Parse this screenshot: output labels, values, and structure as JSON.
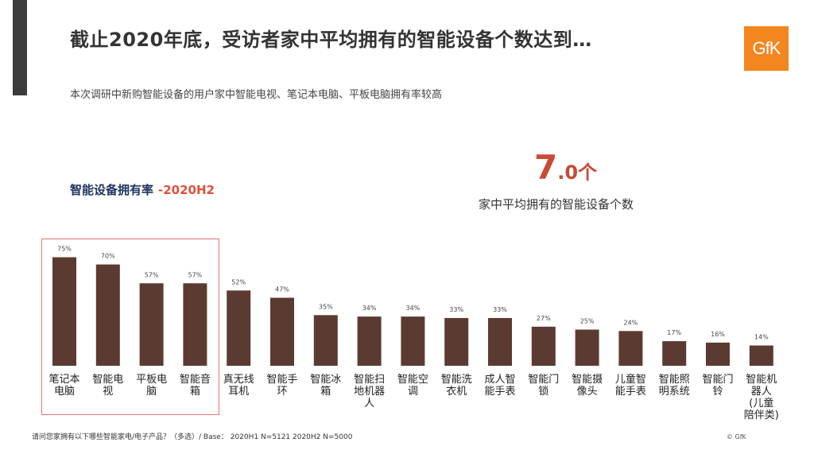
{
  "header": {
    "title": "截止2020年底，受访者家中平均拥有的智能设备个数达到…",
    "subtitle": "本次调研中新购智能设备的用户家中智能电视、笔记本电脑、平板电脑拥有率较高"
  },
  "logo": {
    "text": "GfK",
    "color": "#f4861f"
  },
  "highlight": {
    "value_int": "7",
    "value_dec": ".0",
    "unit": "个",
    "caption": "家中平均拥有的智能设备个数"
  },
  "chart_data": {
    "type": "bar",
    "title": "智能设备拥有率",
    "period": "-2020H2",
    "categories": [
      "笔记本电脑",
      "智能电视",
      "平板电脑",
      "智能音箱",
      "真无线耳机",
      "智能手环",
      "智能冰箱",
      "智能扫地机器人",
      "智能空调",
      "智能洗衣机",
      "成人智能手表",
      "智能门锁",
      "智能摄像头",
      "儿童智能手表",
      "智能照明系统",
      "智能门铃",
      "智能机器人(儿童陪伴类)"
    ],
    "category_lines": [
      [
        "笔记本",
        "电脑"
      ],
      [
        "智能电",
        "视"
      ],
      [
        "平板电",
        "脑"
      ],
      [
        "智能音",
        "箱"
      ],
      [
        "真无线",
        "耳机"
      ],
      [
        "智能手",
        "环"
      ],
      [
        "智能冰",
        "箱"
      ],
      [
        "智能扫",
        "地机器",
        "人"
      ],
      [
        "智能空",
        "调"
      ],
      [
        "智能洗",
        "衣机"
      ],
      [
        "成人智",
        "能手表"
      ],
      [
        "智能门",
        "锁"
      ],
      [
        "智能摄",
        "像头"
      ],
      [
        "儿童智",
        "能手表"
      ],
      [
        "智能照",
        "明系统"
      ],
      [
        "智能门",
        "铃"
      ],
      [
        "智能机",
        "器人",
        "(儿童",
        "陪伴类)"
      ]
    ],
    "values": [
      75,
      70,
      57,
      57,
      52,
      47,
      35,
      34,
      34,
      33,
      33,
      27,
      25,
      24,
      17,
      16,
      14
    ],
    "labels": [
      "75%",
      "70%",
      "57%",
      "57%",
      "52%",
      "47%",
      "35%",
      "34%",
      "34%",
      "33%",
      "33%",
      "27%",
      "25%",
      "24%",
      "17%",
      "16%",
      "14%"
    ],
    "ylim": [
      0,
      100
    ],
    "highlighted_categories": [
      "笔记本电脑",
      "智能电视",
      "平板电脑",
      "智能音箱"
    ],
    "bar_color": "#5b3b31",
    "xlabel": "",
    "ylabel": ""
  },
  "footnote": "请问您家拥有以下哪些智能家电/电子产品？（多选）/ Base： 2020H1 N=5121 2020H2 N=5000",
  "copyright": "© GfK"
}
